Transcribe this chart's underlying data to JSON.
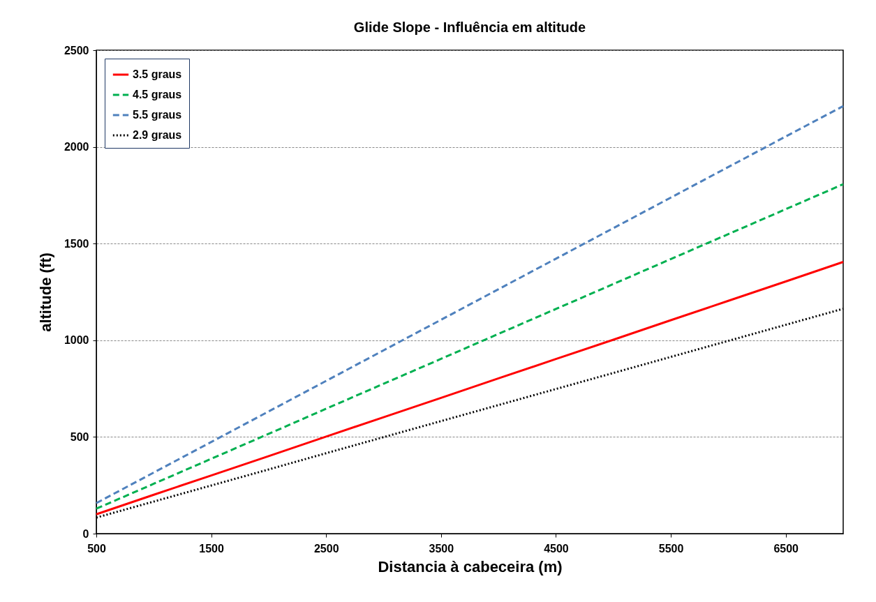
{
  "chart_data": {
    "type": "line",
    "title": "Glide Slope - Influência em altitude",
    "xlabel": "Distancia à cabeceira (m)",
    "ylabel": "altitude (ft)",
    "x": [
      500,
      1000,
      1500,
      2000,
      2500,
      3000,
      3500,
      4000,
      4500,
      5000,
      5500,
      6000,
      6500,
      7000
    ],
    "series": [
      {
        "name": "3.5 graus",
        "color": "#ff0000",
        "line_style": "solid",
        "values": [
          100,
          201,
          301,
          401,
          502,
          602,
          702,
          803,
          903,
          1003,
          1104,
          1204,
          1304,
          1405
        ]
      },
      {
        "name": "4.5 graus",
        "color": "#00b050",
        "line_style": "dashed",
        "values": [
          129,
          258,
          387,
          516,
          646,
          775,
          904,
          1033,
          1162,
          1291,
          1420,
          1549,
          1678,
          1807
        ]
      },
      {
        "name": "5.5 graus",
        "color": "#4f81bd",
        "line_style": "dashed",
        "values": [
          158,
          316,
          474,
          632,
          790,
          948,
          1106,
          1264,
          1422,
          1580,
          1738,
          1896,
          2054,
          2211
        ]
      },
      {
        "name": "2.9 graus",
        "color": "#000000",
        "line_style": "dotted",
        "values": [
          83,
          166,
          249,
          332,
          416,
          499,
          582,
          665,
          748,
          831,
          914,
          997,
          1080,
          1163
        ]
      }
    ],
    "xlim": [
      500,
      7000
    ],
    "xticks": [
      500,
      1500,
      2500,
      3500,
      4500,
      5500,
      6500
    ],
    "ylim": [
      0,
      2500
    ],
    "yticks": [
      0,
      500,
      1000,
      1500,
      2000,
      2500
    ],
    "grid": "y",
    "legend": "top left",
    "marker": "none"
  }
}
